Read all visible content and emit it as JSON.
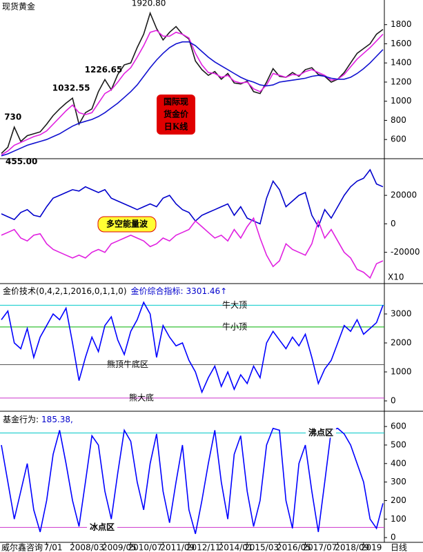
{
  "chart_data": [
    {
      "type": "line",
      "title": "现货黄金",
      "xlim": [
        0,
        59
      ],
      "ylim": [
        414,
        2043
      ],
      "yticks": [
        600,
        800,
        1000,
        1200,
        1400,
        1600,
        1800
      ],
      "series": [
        {
          "color": "#1a1a1a",
          "values": [
            455,
            520,
            730,
            580,
            640,
            660,
            680,
            760,
            850,
            920,
            980,
            1032.55,
            760,
            880,
            920,
            1100,
            1226.65,
            1120,
            1280,
            1380,
            1400,
            1560,
            1700,
            1920.8,
            1760,
            1640,
            1720,
            1780,
            1700,
            1650,
            1420,
            1330,
            1270,
            1310,
            1230,
            1290,
            1190,
            1180,
            1210,
            1100,
            1080,
            1200,
            1340,
            1260,
            1250,
            1300,
            1260,
            1330,
            1350,
            1280,
            1260,
            1200,
            1230,
            1300,
            1400,
            1500,
            1550,
            1600,
            1700,
            1750
          ]
        },
        {
          "color": "#e020e0",
          "values": [
            440,
            480,
            540,
            570,
            600,
            630,
            650,
            690,
            760,
            830,
            900,
            960,
            880,
            860,
            880,
            980,
            1080,
            1120,
            1200,
            1290,
            1350,
            1460,
            1580,
            1720,
            1740,
            1680,
            1680,
            1720,
            1700,
            1660,
            1500,
            1380,
            1300,
            1290,
            1250,
            1270,
            1210,
            1190,
            1200,
            1130,
            1100,
            1170,
            1290,
            1270,
            1250,
            1280,
            1270,
            1310,
            1330,
            1300,
            1270,
            1220,
            1230,
            1280,
            1360,
            1440,
            1500,
            1560,
            1630,
            1700
          ]
        },
        {
          "color": "#1010d0",
          "values": [
            430,
            450,
            480,
            510,
            540,
            560,
            580,
            600,
            630,
            660,
            700,
            740,
            770,
            790,
            810,
            840,
            880,
            930,
            980,
            1040,
            1100,
            1170,
            1260,
            1350,
            1430,
            1500,
            1560,
            1600,
            1620,
            1620,
            1580,
            1520,
            1460,
            1410,
            1370,
            1330,
            1290,
            1250,
            1220,
            1200,
            1170,
            1160,
            1170,
            1200,
            1210,
            1220,
            1230,
            1240,
            1260,
            1270,
            1260,
            1240,
            1230,
            1230,
            1250,
            1290,
            1340,
            1400,
            1470,
            1540
          ]
        }
      ],
      "price_labels": [
        {
          "value": 455,
          "label": "455.00"
        },
        730,
        {
          "value": 1032.55,
          "label": "1032.55"
        },
        {
          "value": 1226.65,
          "label": "1226.65"
        },
        {
          "value": 1920.8,
          "label": "1920.80"
        }
      ],
      "badge": [
        "国际现",
        "货金价",
        "日K线"
      ]
    },
    {
      "type": "line",
      "xlim": [
        0,
        59
      ],
      "ylim": [
        -41000,
        43800
      ],
      "yticks": [
        -20000,
        0,
        20000
      ],
      "scale_label": "X10",
      "badge": "多空能量波",
      "series": [
        {
          "color": "#0000cc",
          "values": [
            7000,
            5000,
            3000,
            8000,
            10000,
            6000,
            5000,
            12000,
            18000,
            20000,
            22000,
            24000,
            23000,
            26000,
            24000,
            22000,
            24000,
            18000,
            16000,
            14000,
            12000,
            10000,
            12000,
            14000,
            12000,
            18000,
            20000,
            14000,
            10000,
            8000,
            2000,
            6000,
            8000,
            10000,
            12000,
            14000,
            6000,
            12000,
            4000,
            2000,
            0,
            18000,
            30000,
            24000,
            12000,
            16000,
            20000,
            22000,
            6000,
            -2000,
            10000,
            4000,
            12000,
            20000,
            26000,
            30000,
            32000,
            38000,
            28000,
            26000
          ]
        },
        {
          "color": "#e020e0",
          "values": [
            -8000,
            -6000,
            -4000,
            -10000,
            -12000,
            -8000,
            -7000,
            -14000,
            -18000,
            -20000,
            -22000,
            -24000,
            -22000,
            -24000,
            -20000,
            -18000,
            -20000,
            -14000,
            -12000,
            -10000,
            -8000,
            -10000,
            -12000,
            -16000,
            -14000,
            -10000,
            -12000,
            -8000,
            -6000,
            -4000,
            2000,
            -2000,
            -6000,
            -10000,
            -8000,
            -12000,
            -4000,
            -10000,
            -2000,
            4000,
            -10000,
            -22000,
            -30000,
            -26000,
            -14000,
            -18000,
            -20000,
            -22000,
            -14000,
            2000,
            -10000,
            -4000,
            -12000,
            -20000,
            -24000,
            -32000,
            -34000,
            -38000,
            -28000,
            -26000
          ]
        }
      ]
    },
    {
      "type": "line",
      "title": "金价技术(0,4,2,1,2016,0,1,1,0)",
      "indicator": {
        "label": "金价综合指标:",
        "value": 3301.46,
        "value_label": "3301.46↑"
      },
      "xlim": [
        0,
        59
      ],
      "ylim": [
        -333,
        4000
      ],
      "yticks": [
        0,
        1000,
        2000,
        3000
      ],
      "ref_lines": [
        {
          "value": 3300,
          "label": "牛大顶",
          "color": "#00c8c8"
        },
        {
          "value": 2550,
          "label": "牛小顶",
          "color": "#00b000"
        },
        {
          "value": 1250,
          "label": "熊顶牛底区",
          "color": "#555555"
        },
        {
          "value": 100,
          "label": "熊大底",
          "color": "#cc33cc"
        }
      ],
      "series": [
        {
          "color": "#0000ff",
          "values": [
            2800,
            3100,
            2000,
            1800,
            2500,
            1500,
            2200,
            2600,
            3000,
            2800,
            3200,
            2000,
            700,
            1500,
            2200,
            1700,
            2600,
            2900,
            2100,
            1600,
            2400,
            2800,
            3400,
            3000,
            1500,
            2600,
            2200,
            1900,
            2000,
            1400,
            1000,
            300,
            800,
            1200,
            500,
            1000,
            400,
            900,
            600,
            1200,
            800,
            2000,
            2400,
            2100,
            1800,
            2200,
            1900,
            2300,
            1500,
            600,
            1100,
            1400,
            2000,
            2600,
            2400,
            2800,
            2300,
            2500,
            2700,
            3301.46
          ]
        }
      ]
    },
    {
      "type": "line",
      "title": "基金行为:",
      "indicator": {
        "value": 185.38,
        "value_label": "185.38,"
      },
      "xlim": [
        0,
        59
      ],
      "ylim": [
        -22,
        675
      ],
      "yticks": [
        0,
        100,
        200,
        300,
        400,
        500,
        600
      ],
      "ref_lines": [
        {
          "value": 565,
          "label": "沸点区",
          "color": "#00c8c8"
        },
        {
          "value": 55,
          "label": "冰点区",
          "color": "#cc33cc"
        }
      ],
      "series": [
        {
          "color": "#0000ff",
          "values": [
            500,
            300,
            100,
            250,
            400,
            150,
            30,
            200,
            450,
            580,
            400,
            200,
            60,
            300,
            550,
            500,
            250,
            100,
            350,
            580,
            520,
            300,
            150,
            400,
            560,
            250,
            80,
            300,
            500,
            150,
            20,
            200,
            400,
            580,
            300,
            100,
            450,
            550,
            250,
            60,
            200,
            500,
            590,
            580,
            200,
            50,
            400,
            500,
            250,
            30,
            300,
            580,
            590,
            560,
            500,
            400,
            300,
            100,
            50,
            185.38
          ]
        }
      ],
      "xticks": [
        {
          "value": 7,
          "label": "7/01"
        },
        {
          "value": 11,
          "label": "2008/03"
        },
        {
          "value": 16,
          "label": "2009/05"
        },
        {
          "value": 20,
          "label": "2010/07"
        },
        {
          "value": 25,
          "label": "2011/09"
        },
        {
          "value": 29,
          "label": "2012/11"
        },
        {
          "value": 34,
          "label": "2014/01"
        },
        {
          "value": 38,
          "label": "2015/03"
        },
        {
          "value": 43,
          "label": "2016/05"
        },
        {
          "value": 47,
          "label": "2017/07"
        },
        {
          "value": 52,
          "label": "2018/09"
        },
        {
          "value": 56,
          "label": "2019"
        }
      ],
      "source": "威尔鑫咨询",
      "period_label": "日线"
    }
  ]
}
